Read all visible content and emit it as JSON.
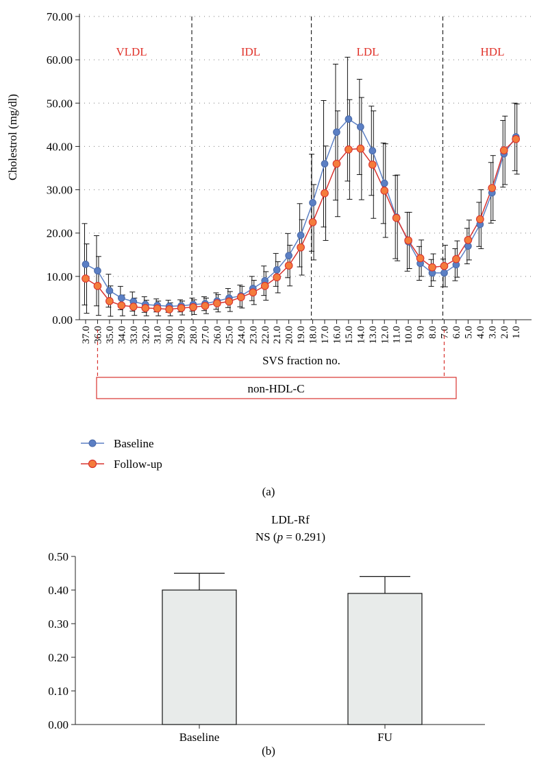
{
  "panel_a": {
    "label": "(a)",
    "ylabel": "Cholestrol (mg/dl)",
    "xlabel": "SVS fraction no.",
    "region_labels": [
      "VLDL",
      "IDL",
      "LDL",
      "HDL"
    ],
    "bracket_label": "non-HDL-C",
    "legend": {
      "baseline": "Baseline",
      "followup": "Follow-up"
    }
  },
  "panel_b": {
    "label": "(b)",
    "title": "LDL-Rf",
    "subtitle_pre": "NS (",
    "subtitle_p": "p",
    "subtitle_post": " = 0.291)"
  },
  "colors": {
    "baseline": "#5b7fc4",
    "followup": "#ee6a33",
    "region_label": "#e0322a",
    "bar_fill": "#e8ebea"
  },
  "chart_data": [
    {
      "type": "line",
      "ylabel": "Cholestrol (mg/dl)",
      "xlabel": "SVS fraction no.",
      "ylim": [
        0,
        70
      ],
      "yticks": [
        "0.00",
        "10.00",
        "20.00",
        "30.00",
        "40.00",
        "50.00",
        "60.00",
        "70.00"
      ],
      "grid": "dotted horizontal",
      "legend_position": "bottom-left",
      "x": [
        "37.0",
        "36.0",
        "35.0",
        "34.0",
        "33.0",
        "32.0",
        "31.0",
        "30.0",
        "29.0",
        "28.0",
        "27.0",
        "26.0",
        "25.0",
        "24.0",
        "23.0",
        "22.0",
        "21.0",
        "20.0",
        "19.0",
        "18.0",
        "17.0",
        "16.0",
        "15.0",
        "14.0",
        "13.0",
        "12.0",
        "11.0",
        "10.0",
        "9.0",
        "8.0",
        "7.0",
        "6.0",
        "5.0",
        "4.0",
        "3.0",
        "2.0",
        "1.0"
      ],
      "regions": [
        {
          "name": "VLDL",
          "from": "37.0",
          "to": "28.0"
        },
        {
          "name": "IDL",
          "from": "28.0",
          "to": "18.0"
        },
        {
          "name": "LDL",
          "from": "18.0",
          "to": "7.0"
        },
        {
          "name": "HDL",
          "from": "7.0",
          "to": "1.0"
        }
      ],
      "bracket": {
        "name": "non-HDL-C",
        "from": "36.0",
        "to": "7.0"
      },
      "series": [
        {
          "name": "Baseline",
          "values": [
            12.8,
            11.3,
            6.7,
            5.0,
            4.2,
            3.5,
            3.3,
            3.1,
            3.2,
            3.5,
            3.7,
            4.3,
            5.0,
            5.5,
            7.2,
            9.0,
            11.5,
            14.8,
            19.5,
            27.0,
            36.0,
            43.3,
            46.3,
            44.5,
            39.0,
            31.5,
            23.7,
            18.0,
            13.0,
            10.8,
            10.8,
            12.7,
            17.0,
            22.0,
            29.3,
            38.3,
            42.2
          ],
          "error": [
            9.4,
            8.1,
            3.8,
            2.7,
            2.2,
            1.8,
            1.5,
            1.4,
            1.4,
            1.5,
            1.6,
            1.9,
            2.2,
            2.5,
            2.8,
            3.4,
            3.8,
            5.1,
            7.3,
            11.2,
            14.6,
            15.7,
            14.3,
            11.0,
            10.3,
            9.3,
            9.6,
            6.8,
            3.9,
            3.1,
            3.2,
            3.7,
            4.1,
            5.1,
            7.0,
            7.7,
            7.8
          ]
        },
        {
          "name": "Follow-up",
          "values": [
            9.5,
            7.8,
            4.3,
            3.3,
            3.0,
            2.7,
            2.6,
            2.4,
            2.7,
            2.9,
            3.2,
            3.8,
            4.2,
            5.2,
            6.3,
            7.8,
            9.8,
            12.5,
            16.7,
            22.5,
            29.2,
            36.0,
            39.3,
            39.5,
            35.8,
            29.8,
            23.5,
            18.3,
            14.2,
            12.1,
            12.4,
            14.0,
            18.4,
            23.2,
            30.4,
            39.1,
            41.7
          ],
          "error": [
            8.0,
            6.8,
            3.5,
            2.4,
            2.0,
            1.8,
            1.7,
            1.5,
            1.6,
            1.7,
            1.8,
            2.0,
            2.3,
            2.5,
            2.8,
            3.3,
            3.6,
            4.7,
            6.4,
            8.7,
            10.9,
            12.2,
            11.5,
            11.8,
            12.4,
            10.8,
            9.9,
            6.5,
            4.2,
            3.1,
            4.8,
            4.2,
            4.6,
            6.8,
            7.5,
            7.9,
            8.1
          ]
        }
      ]
    },
    {
      "type": "bar",
      "title": "LDL-Rf",
      "subtitle": "NS (p = 0.291)",
      "categories": [
        "Baseline",
        "FU"
      ],
      "values": [
        0.4,
        0.39
      ],
      "error_upper": [
        0.05,
        0.05
      ],
      "ylim": [
        0,
        0.5
      ],
      "yticks": [
        "0.00",
        "0.10",
        "0.20",
        "0.30",
        "0.40",
        "0.50"
      ]
    }
  ]
}
